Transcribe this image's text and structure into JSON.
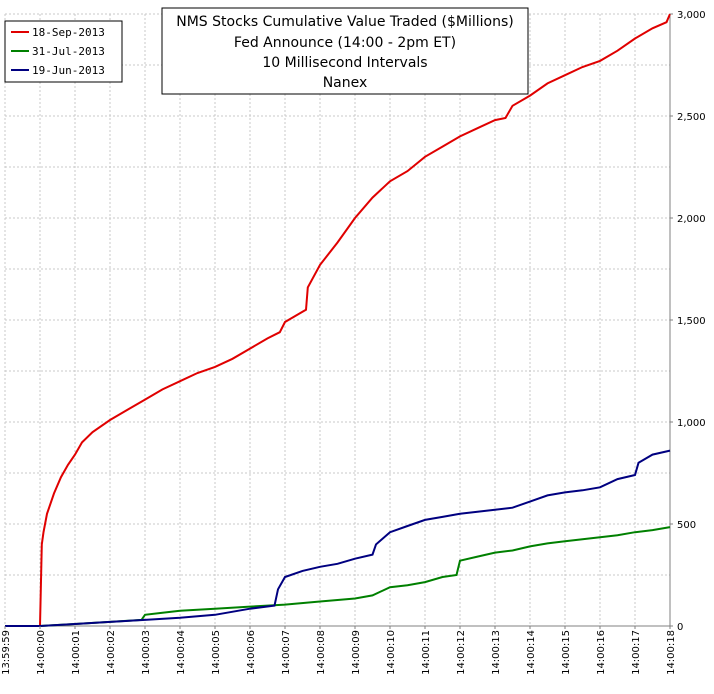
{
  "chart_data": {
    "type": "line",
    "title": [
      "NMS Stocks Cumulative Value Traded ($Millions)",
      "Fed Announce (14:00 - 2pm ET)",
      "10 Millisecond Intervals",
      "Nanex"
    ],
    "xlabel": "",
    "ylabel": "",
    "x_range_seconds": [
      -1,
      18
    ],
    "xlim_labels": [
      "13:59:59",
      "14:00:18"
    ],
    "ylim": [
      0,
      3000
    ],
    "y_ticks": [
      0,
      500,
      1000,
      1500,
      2000,
      2500,
      3000
    ],
    "y_tick_labels": [
      "0",
      "500",
      "1,000",
      "1,500",
      "2,000",
      "2,500",
      "3,000"
    ],
    "x_tick_labels": [
      "13:59:59",
      "14:00:00",
      "14:00:01",
      "14:00:02",
      "14:00:03",
      "14:00:04",
      "14:00:05",
      "14:00:06",
      "14:00:07",
      "14:00:08",
      "14:00:09",
      "14:00:10",
      "14:00:11",
      "14:00:12",
      "14:00:13",
      "14:00:14",
      "14:00:15",
      "14:00:16",
      "14:00:17",
      "14:00:18"
    ],
    "grid": true,
    "legend_position": "top-left",
    "series": [
      {
        "name": "18-Sep-2013",
        "color": "#e00000",
        "x": [
          0.0,
          0.05,
          0.1,
          0.2,
          0.4,
          0.6,
          0.8,
          1.0,
          1.2,
          1.5,
          2.0,
          2.5,
          3.0,
          3.5,
          4.0,
          4.5,
          5.0,
          5.5,
          6.0,
          6.5,
          6.85,
          7.0,
          7.5,
          7.6,
          7.65,
          8.0,
          8.5,
          9.0,
          9.5,
          10.0,
          10.5,
          11.0,
          11.5,
          12.0,
          12.5,
          13.0,
          13.3,
          13.5,
          14.0,
          14.5,
          15.0,
          15.5,
          16.0,
          16.5,
          17.0,
          17.5,
          17.9,
          18.0
        ],
        "y": [
          0,
          400,
          460,
          550,
          650,
          730,
          790,
          840,
          900,
          950,
          1010,
          1060,
          1110,
          1160,
          1200,
          1240,
          1270,
          1310,
          1360,
          1410,
          1440,
          1490,
          1540,
          1550,
          1660,
          1770,
          1880,
          2000,
          2100,
          2180,
          2230,
          2300,
          2350,
          2400,
          2440,
          2480,
          2490,
          2550,
          2600,
          2660,
          2700,
          2740,
          2770,
          2820,
          2880,
          2930,
          2960,
          3000
        ]
      },
      {
        "name": "31-Jul-2013",
        "color": "#008000",
        "x": [
          0.0,
          1.0,
          2.0,
          2.9,
          3.0,
          3.5,
          4.0,
          5.0,
          6.0,
          7.0,
          8.0,
          9.0,
          9.5,
          10.0,
          10.5,
          11.0,
          11.5,
          11.9,
          12.0,
          12.5,
          13.0,
          13.5,
          14.0,
          14.5,
          15.0,
          15.5,
          16.0,
          16.5,
          17.0,
          17.5,
          18.0
        ],
        "y": [
          0,
          10,
          20,
          30,
          55,
          65,
          75,
          85,
          95,
          105,
          120,
          135,
          150,
          190,
          200,
          215,
          240,
          250,
          320,
          340,
          360,
          370,
          390,
          405,
          415,
          425,
          435,
          445,
          460,
          470,
          485
        ]
      },
      {
        "name": "19-Jun-2013",
        "color": "#000080",
        "x": [
          0.0,
          1.0,
          2.0,
          3.0,
          4.0,
          5.0,
          6.0,
          6.7,
          6.8,
          7.0,
          7.5,
          8.0,
          8.5,
          9.0,
          9.5,
          9.6,
          10.0,
          10.5,
          11.0,
          11.5,
          12.0,
          12.5,
          13.0,
          13.5,
          14.0,
          14.5,
          15.0,
          15.5,
          16.0,
          16.5,
          17.0,
          17.1,
          17.5,
          18.0
        ],
        "y": [
          0,
          10,
          20,
          30,
          40,
          55,
          85,
          100,
          180,
          240,
          270,
          290,
          305,
          330,
          350,
          400,
          460,
          490,
          520,
          535,
          550,
          560,
          570,
          580,
          610,
          640,
          655,
          665,
          680,
          720,
          740,
          800,
          840,
          860
        ]
      }
    ]
  }
}
